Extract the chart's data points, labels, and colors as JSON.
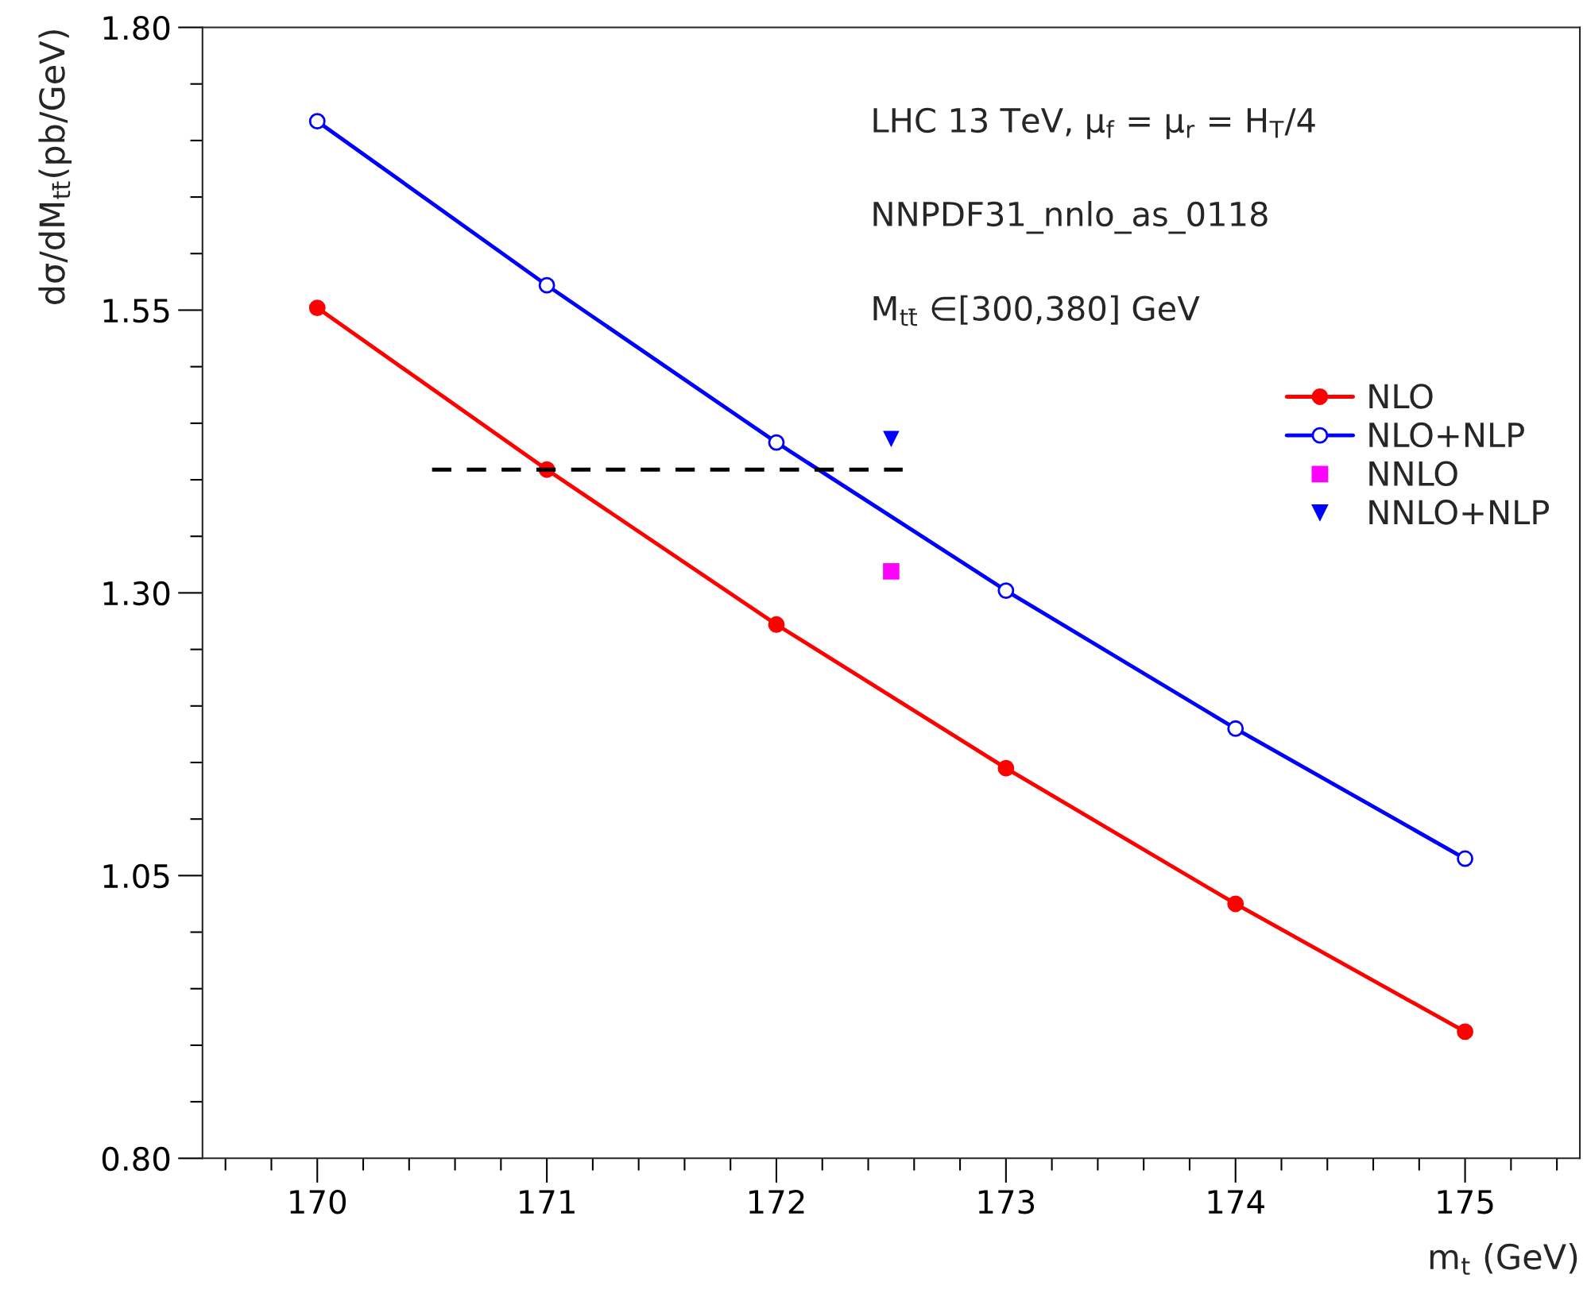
{
  "chart_data": {
    "type": "line",
    "xlabel": "m$_{t}$ (GeV)",
    "ylabel": "dσ/dM$_{tt̄}$(pb/GeV)",
    "x": [
      170,
      171,
      172,
      173,
      174,
      175
    ],
    "series": [
      {
        "name": "NLO",
        "color": "#ff0000",
        "marker": "circle",
        "values": [
          1.552,
          1.409,
          1.272,
          1.145,
          1.025,
          0.912
        ]
      },
      {
        "name": "NLO+NLP",
        "color": "#0000ff",
        "marker": "circle-open",
        "values": [
          1.717,
          1.572,
          1.433,
          1.302,
          1.18,
          1.065
        ]
      },
      {
        "name": "NNLO",
        "type": "scatter",
        "color": "#ff00ff",
        "marker": "square",
        "x": [
          172.5
        ],
        "values": [
          1.319
        ]
      },
      {
        "name": "NNLO+NLP",
        "type": "scatter",
        "color": "#0000ff",
        "marker": "triangle",
        "x": [
          172.5
        ],
        "values": [
          1.436
        ]
      },
      {
        "type": "line",
        "color": "#000000",
        "line_style": "dashed",
        "marker": "none",
        "x": [
          170.5,
          172.55
        ],
        "values": [
          1.409,
          1.409
        ]
      }
    ],
    "annotations": [
      "LHC 13 TeV, μ$_{f}$ = μ$_{r}$ = H$_{T}$/4",
      "NNPDF31_nnlo_as_0118",
      "M$_{tt̄}$ ∈[300,380] GeV"
    ],
    "xlim": [
      169.5,
      175.5
    ],
    "xticks": [
      {
        "value": 169.6,
        "label": null
      },
      {
        "value": 169.8,
        "label": null
      },
      170,
      {
        "value": 170.2,
        "label": null
      },
      {
        "value": 170.4,
        "label": null
      },
      {
        "value": 170.6,
        "label": null
      },
      {
        "value": 170.8,
        "label": null
      },
      171,
      {
        "value": 171.2,
        "label": null
      },
      {
        "value": 171.4,
        "label": null
      },
      {
        "value": 171.6,
        "label": null
      },
      {
        "value": 171.8,
        "label": null
      },
      172,
      {
        "value": 172.2,
        "label": null
      },
      {
        "value": 172.4,
        "label": null
      },
      {
        "value": 172.6,
        "label": null
      },
      {
        "value": 172.8,
        "label": null
      },
      173,
      {
        "value": 173.2,
        "label": null
      },
      {
        "value": 173.4,
        "label": null
      },
      {
        "value": 173.6,
        "label": null
      },
      {
        "value": 173.8,
        "label": null
      },
      174,
      {
        "value": 174.2,
        "label": null
      },
      {
        "value": 174.4,
        "label": null
      },
      {
        "value": 174.6,
        "label": null
      },
      {
        "value": 174.8,
        "label": null
      },
      175,
      {
        "value": 175.2,
        "label": null
      },
      {
        "value": 175.4,
        "label": null
      }
    ],
    "ylim": [
      0.8,
      1.8
    ],
    "yticks": [
      {
        "value": 0.8,
        "label": "0.80"
      },
      {
        "value": 0.85,
        "label": null
      },
      {
        "value": 0.9,
        "label": null
      },
      {
        "value": 0.95,
        "label": null
      },
      {
        "value": 1.0,
        "label": null
      },
      {
        "value": 1.05,
        "label": "1.05"
      },
      {
        "value": 1.1,
        "label": null
      },
      {
        "value": 1.15,
        "label": null
      },
      {
        "value": 1.2,
        "label": null
      },
      {
        "value": 1.25,
        "label": null
      },
      {
        "value": 1.3,
        "label": "1.30"
      },
      {
        "value": 1.35,
        "label": null
      },
      {
        "value": 1.4,
        "label": null
      },
      {
        "value": 1.45,
        "label": null
      },
      {
        "value": 1.5,
        "label": null
      },
      {
        "value": 1.55,
        "label": "1.55"
      },
      {
        "value": 1.6,
        "label": null
      },
      {
        "value": 1.65,
        "label": null
      },
      {
        "value": 1.7,
        "label": null
      },
      {
        "value": 1.75,
        "label": null
      },
      {
        "value": 1.8,
        "label": "1.80"
      }
    ],
    "grid": false,
    "legend": "right"
  }
}
